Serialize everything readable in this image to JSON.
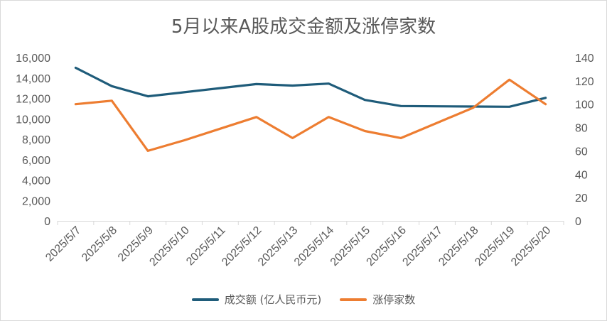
{
  "chart_data": {
    "type": "line",
    "title": "5月以来A股成交金额及涨停家数",
    "categories": [
      "2025/5/7",
      "2025/5/8",
      "2025/5/9",
      "2025/5/10",
      "2025/5/11",
      "2025/5/12",
      "2025/5/13",
      "2025/5/14",
      "2025/5/15",
      "2025/5/16",
      "2025/5/17",
      "2025/5/18",
      "2025/5/19",
      "2025/5/20"
    ],
    "y_left": {
      "ylim": [
        0,
        16000
      ],
      "ticks": [
        "0",
        "2,000",
        "4,000",
        "6,000",
        "8,000",
        "10,000",
        "12,000",
        "14,000",
        "16,000"
      ]
    },
    "y_right": {
      "ylim": [
        0,
        140
      ],
      "ticks": [
        "0",
        "20",
        "40",
        "60",
        "80",
        "100",
        "120",
        "140"
      ]
    },
    "series": [
      {
        "name": "成交额 (亿人民币元)",
        "axis": "left",
        "color": "#1f5c7a",
        "values": [
          15000,
          13200,
          12200,
          12600,
          13000,
          13400,
          13250,
          13450,
          11850,
          11250,
          11220,
          11200,
          11180,
          12050
        ]
      },
      {
        "name": "涨停家数",
        "axis": "right",
        "color": "#ed7d31",
        "values": [
          100,
          103,
          60,
          69,
          79,
          89,
          71,
          89,
          77,
          71,
          84,
          97,
          121,
          100
        ]
      }
    ],
    "grid": false,
    "legend": "bottom"
  }
}
